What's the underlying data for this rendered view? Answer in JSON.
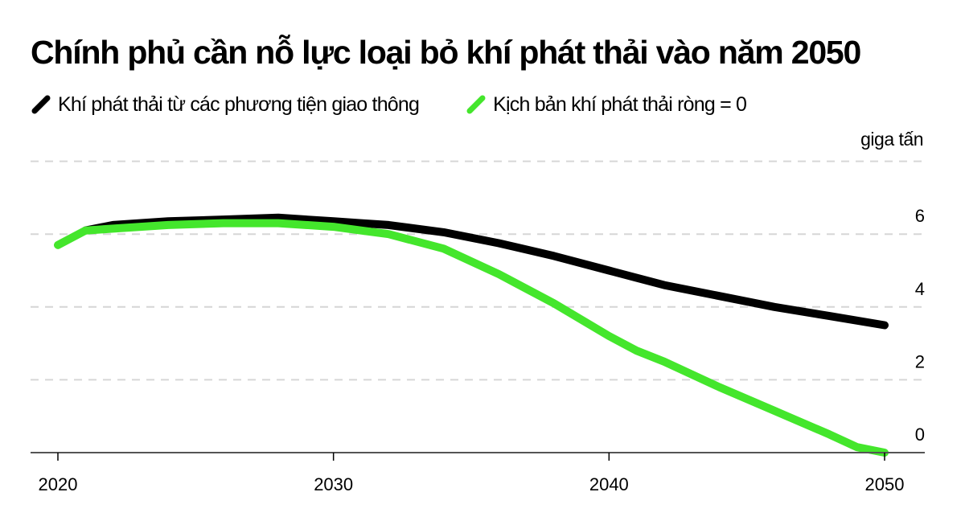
{
  "title": "Chính phủ cần nỗ lực loại bỏ khí phát thải vào năm 2050",
  "legend": [
    {
      "label": "Khí phát thải từ các phương tiện giao thông",
      "color": "#000000"
    },
    {
      "label": "Kịch bản khí phát thải ròng = 0",
      "color": "#44e62c"
    }
  ],
  "unit": "giga tấn",
  "colors": {
    "gridline": "#d6d6d6",
    "axis": "#555555",
    "black_series": "#000000",
    "green_series": "#44e62c"
  },
  "chart_data": {
    "type": "line",
    "title": "Chính phủ cần nỗ lực loại bỏ khí phát thải vào năm 2050",
    "xlabel": "",
    "ylabel": "giga tấn",
    "xlim": [
      2020,
      2050
    ],
    "ylim": [
      0,
      8
    ],
    "x_ticks": [
      2020,
      2030,
      2040,
      2050
    ],
    "y_ticks": [
      0,
      2,
      4,
      6
    ],
    "grid": true,
    "legend_position": "top-left",
    "series": [
      {
        "name": "Khí phát thải từ các phương tiện giao thông",
        "color": "#000000",
        "x": [
          2021,
          2022,
          2024,
          2026,
          2028,
          2030,
          2031,
          2032,
          2034,
          2036,
          2038,
          2040,
          2041,
          2042,
          2044,
          2046,
          2048,
          2050
        ],
        "values": [
          6.1,
          6.25,
          6.35,
          6.4,
          6.45,
          6.35,
          6.3,
          6.25,
          6.05,
          5.75,
          5.4,
          5.0,
          4.8,
          4.6,
          4.3,
          4.0,
          3.75,
          3.5
        ]
      },
      {
        "name": "Kịch bản khí phát thải ròng = 0",
        "color": "#44e62c",
        "x": [
          2020,
          2021,
          2022,
          2024,
          2026,
          2028,
          2030,
          2031,
          2032,
          2034,
          2036,
          2038,
          2040,
          2041,
          2042,
          2044,
          2046,
          2048,
          2049,
          2050
        ],
        "values": [
          5.7,
          6.1,
          6.15,
          6.25,
          6.3,
          6.3,
          6.2,
          6.1,
          6.0,
          5.6,
          4.9,
          4.1,
          3.2,
          2.8,
          2.5,
          1.8,
          1.15,
          0.5,
          0.15,
          0.0
        ]
      }
    ]
  }
}
